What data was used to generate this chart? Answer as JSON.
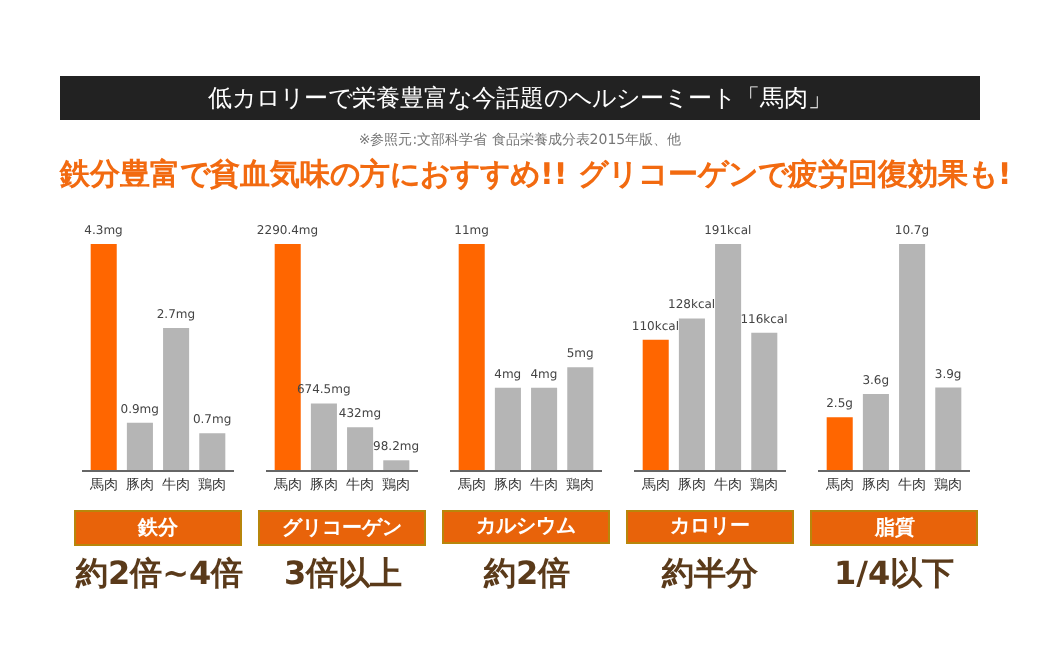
{
  "chart_data": [
    {
      "type": "other",
      "title": "低カロリーで栄養豊富な今話題のヘルシーミート「馬肉」",
      "subtitle": "鉄分豊富で貧血気味の方におすすめ!! グリコーゲンで疲労回復効果も!",
      "annotations": [
        "※参照元:文部科学省 食品栄養成分表2015年版、他"
      ]
    },
    {
      "type": "bar",
      "xlabel": "鉄分",
      "categories": [
        "馬肉",
        "豚肉",
        "牛肉",
        "鶏肉"
      ],
      "values": [
        4.3,
        0.9,
        2.7,
        0.7
      ],
      "colors": [
        "#ff6600",
        "#b5b5b5",
        "#b5b5b5",
        "#b5b5b5"
      ],
      "value_labels": [
        "4.3mg",
        "0.9mg",
        "2.7mg",
        "0.7mg"
      ],
      "annotations": [
        "約2倍~4倍"
      ],
      "tick_labels": "x"
    },
    {
      "type": "bar",
      "xlabel": "グリコーゲン",
      "categories": [
        "馬肉",
        "豚肉",
        "牛肉",
        "鶏肉"
      ],
      "values": [
        2290.4,
        674.5,
        432,
        98.2
      ],
      "colors": [
        "#ff6600",
        "#b5b5b5",
        "#b5b5b5",
        "#b5b5b5"
      ],
      "value_labels": [
        "2290.4mg",
        "674.5mg",
        "432mg",
        "98.2mg"
      ],
      "annotations": [
        "3倍以上"
      ],
      "tick_labels": "x"
    },
    {
      "type": "bar",
      "xlabel": "カルシウム",
      "categories": [
        "馬肉",
        "豚肉",
        "牛肉",
        "鶏肉"
      ],
      "values": [
        11,
        4,
        4,
        5
      ],
      "colors": [
        "#ff6600",
        "#b5b5b5",
        "#b5b5b5",
        "#b5b5b5"
      ],
      "value_labels": [
        "11mg",
        "4mg",
        "4mg",
        "5mg"
      ],
      "annotations": [
        "約2倍"
      ],
      "tick_labels": "x"
    },
    {
      "type": "bar",
      "xlabel": "カロリー",
      "categories": [
        "馬肉",
        "豚肉",
        "牛肉",
        "鶏肉"
      ],
      "values": [
        110,
        128,
        191,
        116
      ],
      "colors": [
        "#ff6600",
        "#b5b5b5",
        "#b5b5b5",
        "#b5b5b5"
      ],
      "value_labels": [
        "110kcal",
        "128kcal",
        "191kcal",
        "116kcal"
      ],
      "annotations": [
        "約半分"
      ],
      "tick_labels": "x"
    },
    {
      "type": "bar",
      "xlabel": "脂質",
      "categories": [
        "馬肉",
        "豚肉",
        "牛肉",
        "鶏肉"
      ],
      "values": [
        2.5,
        3.6,
        10.7,
        3.9
      ],
      "colors": [
        "#ff6600",
        "#b5b5b5",
        "#b5b5b5",
        "#b5b5b5"
      ],
      "value_labels": [
        "2.5g",
        "3.6g",
        "10.7g",
        "3.9g"
      ],
      "annotations": [
        "1/4以下"
      ],
      "tick_labels": "x"
    }
  ]
}
